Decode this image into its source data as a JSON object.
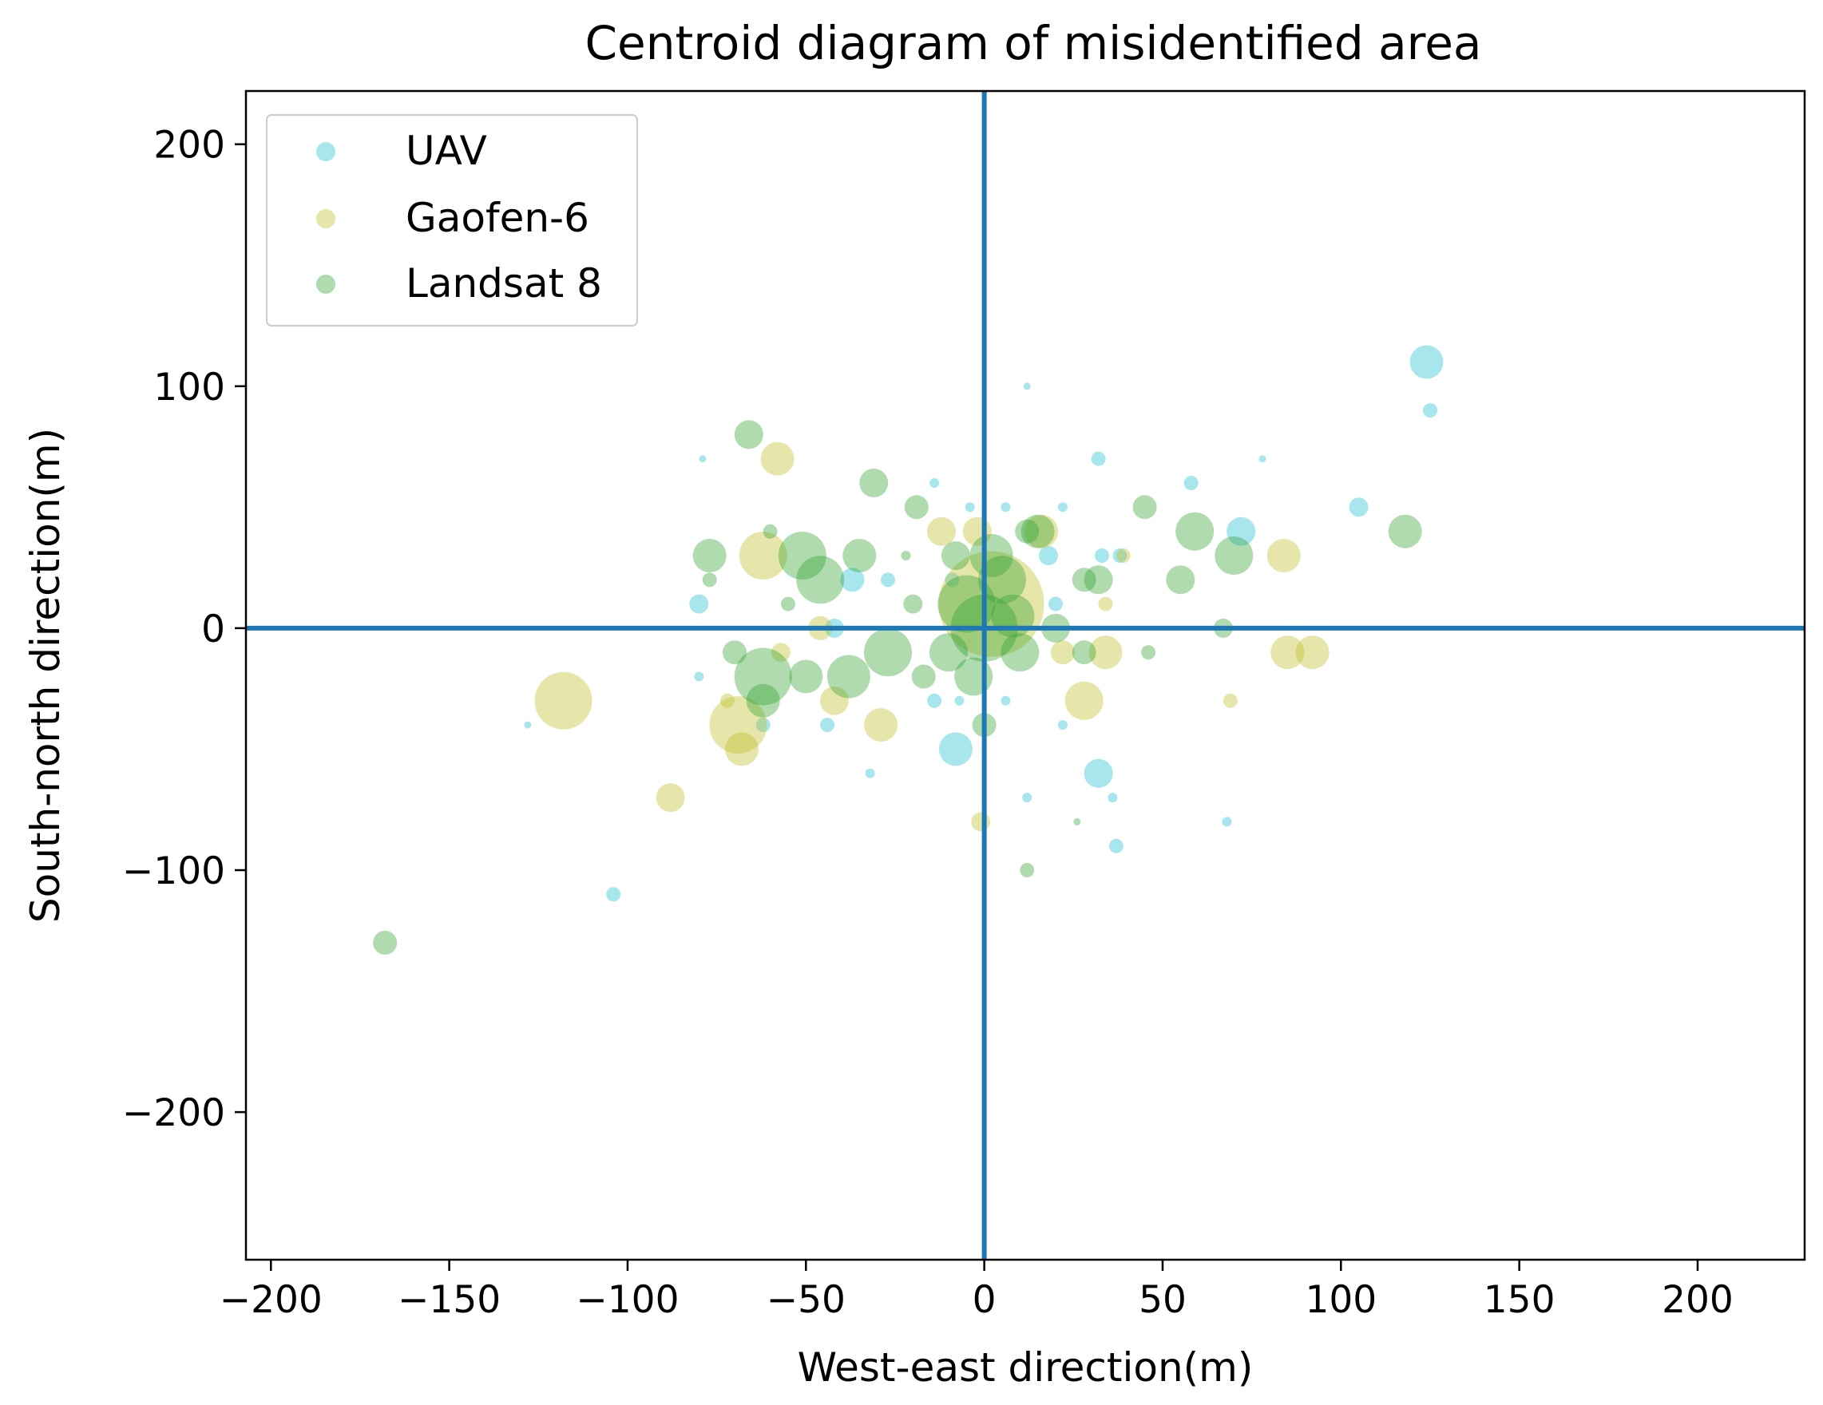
{
  "chart_data": {
    "type": "scatter",
    "title": "Centroid diagram of misidentified area",
    "xlabel": "West-east direction(m)",
    "ylabel": "South-north direction(m)",
    "xlim": [
      -207,
      230
    ],
    "ylim": [
      -261,
      222
    ],
    "xticks": [
      -200,
      -150,
      -100,
      -50,
      0,
      50,
      100,
      150,
      200
    ],
    "yticks": [
      -200,
      -100,
      0,
      100,
      200
    ],
    "xtick_labels": [
      "−200",
      "−150",
      "−100",
      "−50",
      "0",
      "50",
      "100",
      "150",
      "200"
    ],
    "ytick_labels": [
      "−200",
      "−100",
      "0",
      "100",
      "200"
    ],
    "reference_lines": {
      "x": 0,
      "y": 0,
      "color": "#1f77b4"
    },
    "legend_position": "upper-left",
    "series": [
      {
        "name": "UAV",
        "color": "#17becf",
        "points": [
          [
            124,
            110,
            7
          ],
          [
            125,
            90,
            3
          ],
          [
            105,
            50,
            4
          ],
          [
            72,
            40,
            6
          ],
          [
            58,
            60,
            3
          ],
          [
            32,
            70,
            3
          ],
          [
            78,
            70,
            1.5
          ],
          [
            12,
            100,
            1.5
          ],
          [
            -79,
            70,
            1.5
          ],
          [
            -14,
            60,
            2
          ],
          [
            -80,
            10,
            4
          ],
          [
            -37,
            20,
            5
          ],
          [
            -27,
            20,
            3
          ],
          [
            -42,
            0,
            4
          ],
          [
            -62,
            -40,
            3
          ],
          [
            -44,
            -40,
            3
          ],
          [
            -8,
            -50,
            7
          ],
          [
            -32,
            -60,
            2
          ],
          [
            -104,
            -110,
            3
          ],
          [
            -128,
            -40,
            1.5
          ],
          [
            -80,
            -20,
            2
          ],
          [
            32,
            -60,
            6
          ],
          [
            37,
            -90,
            3
          ],
          [
            12,
            -70,
            2
          ],
          [
            36,
            -70,
            2
          ],
          [
            68,
            -80,
            2
          ],
          [
            -14,
            -30,
            3
          ],
          [
            -7,
            -30,
            2
          ],
          [
            6,
            -30,
            2
          ],
          [
            22,
            -40,
            2
          ],
          [
            18,
            30,
            4
          ],
          [
            22,
            50,
            2
          ],
          [
            -9,
            20,
            3
          ],
          [
            33,
            30,
            3
          ],
          [
            38,
            30,
            3
          ],
          [
            -4,
            50,
            2
          ],
          [
            6,
            50,
            2
          ],
          [
            20,
            10,
            3
          ]
        ]
      },
      {
        "name": "Gaofen-6",
        "color": "#bcbd22",
        "points": [
          [
            -118,
            -30,
            12
          ],
          [
            -69,
            -40,
            12
          ],
          [
            -68,
            -50,
            7
          ],
          [
            -88,
            -70,
            6
          ],
          [
            -62,
            30,
            10
          ],
          [
            -58,
            70,
            7
          ],
          [
            -12,
            40,
            6
          ],
          [
            -2,
            40,
            6
          ],
          [
            2,
            10,
            22
          ],
          [
            28,
            -30,
            8
          ],
          [
            34,
            -10,
            7
          ],
          [
            85,
            -10,
            7
          ],
          [
            92,
            -10,
            7
          ],
          [
            84,
            30,
            7
          ],
          [
            -42,
            -30,
            6
          ],
          [
            -29,
            -40,
            7
          ],
          [
            -1,
            -80,
            4
          ],
          [
            -72,
            -30,
            3
          ],
          [
            69,
            -30,
            3
          ],
          [
            -46,
            0,
            5
          ],
          [
            -57,
            -10,
            4
          ],
          [
            39,
            30,
            3
          ],
          [
            34,
            10,
            3
          ],
          [
            22,
            -10,
            5
          ],
          [
            16,
            40,
            7
          ]
        ]
      },
      {
        "name": "Landsat 8",
        "color": "#2ca02c",
        "points": [
          [
            -168,
            -130,
            5
          ],
          [
            -66,
            80,
            6
          ],
          [
            -31,
            60,
            6
          ],
          [
            -77,
            30,
            7
          ],
          [
            -51,
            30,
            10
          ],
          [
            -46,
            20,
            10
          ],
          [
            -35,
            30,
            7
          ],
          [
            -19,
            50,
            5
          ],
          [
            -62,
            -20,
            12
          ],
          [
            -62,
            -30,
            7
          ],
          [
            -50,
            -20,
            7
          ],
          [
            -38,
            -20,
            9
          ],
          [
            -27,
            -10,
            10
          ],
          [
            -70,
            -10,
            5
          ],
          [
            -17,
            -20,
            5
          ],
          [
            -5,
            10,
            12
          ],
          [
            0,
            0,
            14
          ],
          [
            5,
            20,
            10
          ],
          [
            -10,
            -10,
            8
          ],
          [
            10,
            -10,
            8
          ],
          [
            15,
            40,
            7
          ],
          [
            12,
            40,
            5
          ],
          [
            20,
            0,
            6
          ],
          [
            28,
            -10,
            5
          ],
          [
            32,
            20,
            6
          ],
          [
            28,
            20,
            5
          ],
          [
            45,
            50,
            5
          ],
          [
            55,
            20,
            6
          ],
          [
            59,
            40,
            8
          ],
          [
            70,
            30,
            8
          ],
          [
            67,
            0,
            4
          ],
          [
            118,
            40,
            7
          ],
          [
            46,
            -10,
            3
          ],
          [
            0,
            -40,
            5
          ],
          [
            12,
            -100,
            3
          ],
          [
            -8,
            30,
            6
          ],
          [
            -60,
            40,
            3
          ],
          [
            -77,
            20,
            3
          ],
          [
            -55,
            10,
            3
          ],
          [
            -22,
            30,
            2
          ],
          [
            -20,
            10,
            4
          ],
          [
            2,
            30,
            9
          ],
          [
            -3,
            -20,
            8
          ],
          [
            8,
            5,
            9
          ],
          [
            26,
            -80,
            1.5
          ]
        ]
      }
    ]
  }
}
